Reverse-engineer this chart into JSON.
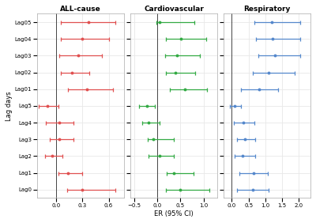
{
  "yticks": [
    "Lag05",
    "Lag04",
    "Lag03",
    "Lag02",
    "Lag01",
    "Lag5",
    "Lag4",
    "Lag3",
    "Lag2",
    "Lag1",
    "Lag0"
  ],
  "all_cause": {
    "centers": [
      0.37,
      0.3,
      0.25,
      0.18,
      0.35,
      -0.1,
      0.03,
      0.03,
      -0.05,
      0.13,
      0.3
    ],
    "lowers": [
      0.05,
      0.05,
      0.03,
      0.05,
      0.13,
      -0.2,
      -0.12,
      -0.08,
      -0.13,
      0.02,
      0.12
    ],
    "uppers": [
      0.68,
      0.6,
      0.52,
      0.38,
      0.65,
      0.02,
      0.2,
      0.2,
      0.07,
      0.3,
      0.68
    ],
    "color": "#e05050",
    "vline": 0.0,
    "xlim": [
      -0.22,
      0.78
    ],
    "xticks": [
      0.0,
      0.3,
      0.6
    ],
    "title": "ALL-cause"
  },
  "cardiovascular": {
    "centers": [
      0.05,
      0.52,
      0.42,
      0.4,
      0.6,
      -0.22,
      -0.18,
      -0.08,
      0.05,
      0.35,
      0.5
    ],
    "lowers": [
      -0.02,
      0.18,
      0.17,
      0.18,
      0.28,
      -0.4,
      -0.33,
      -0.2,
      -0.18,
      0.2,
      0.18
    ],
    "uppers": [
      0.8,
      1.05,
      0.92,
      0.82,
      1.08,
      -0.05,
      0.05,
      0.35,
      0.35,
      0.78,
      1.12
    ],
    "color": "#33aa44",
    "vline": 0.0,
    "xlim": [
      -0.58,
      1.3
    ],
    "xticks": [
      -0.5,
      0.0,
      0.5,
      1.0
    ],
    "title": "Cardiovascular"
  },
  "respiratory": {
    "centers": [
      1.2,
      1.22,
      1.28,
      1.1,
      0.82,
      0.08,
      0.35,
      0.38,
      0.32,
      0.65,
      0.62
    ],
    "lowers": [
      0.68,
      0.72,
      0.78,
      0.62,
      0.28,
      -0.05,
      0.05,
      0.15,
      0.08,
      0.22,
      0.15
    ],
    "uppers": [
      2.05,
      2.05,
      2.05,
      1.88,
      1.38,
      0.28,
      0.68,
      0.7,
      0.7,
      1.08,
      1.1
    ],
    "color": "#5588cc",
    "vline": 0.0,
    "xlim": [
      -0.25,
      2.35
    ],
    "xticks": [
      0.0,
      0.5,
      1.0,
      1.5,
      2.0
    ],
    "title": "Respiratory"
  },
  "ylabel": "Lag days",
  "xlabel": "ER (95% CI)",
  "bg_color": "#ffffff",
  "grid_color": "#e8e8e8"
}
